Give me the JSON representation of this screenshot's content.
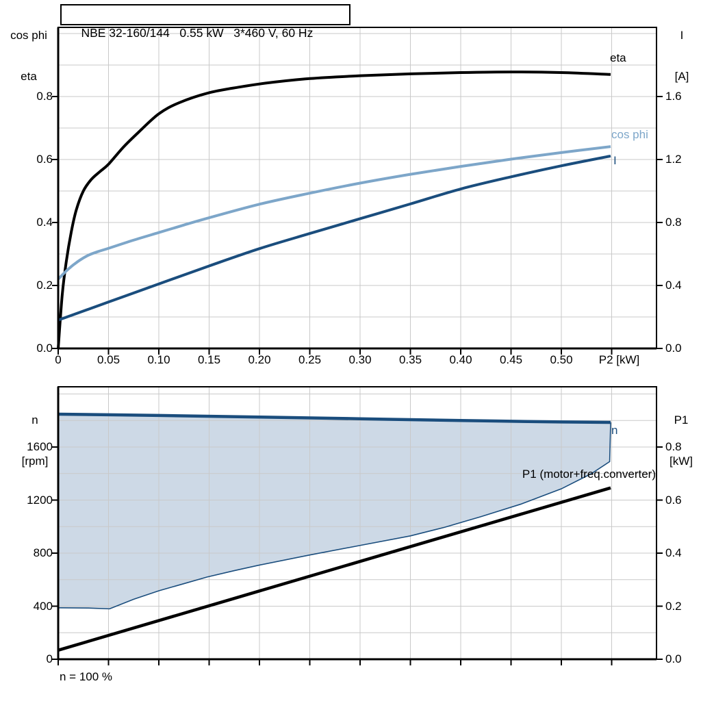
{
  "title": "NBE 32-160/144   0.55 kW   3*460 V, 60 Hz",
  "caption": "n = 100 %",
  "colors": {
    "black_curve": "#000000",
    "light_blue_curve": "#7da6c9",
    "dark_blue_curve": "#1a4d7d",
    "area_fill": "#cdd9e6",
    "gridline": "#c9c9c9",
    "frame": "#000000"
  },
  "chart_data": [
    {
      "type": "line",
      "name": "motor-performance",
      "x_axis": {
        "label": "P2 [kW]",
        "min": 0,
        "max": 0.594,
        "grid_step": 0.05,
        "grid_max": 0.55,
        "tick_values": [
          0,
          0.05,
          0.1,
          0.15,
          0.2,
          0.25,
          0.3,
          0.35,
          0.4,
          0.45,
          0.5,
          0.55
        ],
        "tick_labels": [
          "0",
          "0.05",
          "0.10",
          "0.15",
          "0.20",
          "0.25",
          "0.30",
          "0.35",
          "0.40",
          "0.45",
          "0.50",
          "P2 [kW]"
        ]
      },
      "y_left": {
        "label_lines": [
          "cos phi",
          "eta"
        ],
        "min": 0,
        "max": 1.02,
        "grid_step": 0.1,
        "grid_max": 1.0,
        "tick_values": [
          0,
          0.2,
          0.4,
          0.6,
          0.8
        ],
        "tick_labels": [
          "0.0",
          "0.2",
          "0.4",
          "0.6",
          "0.8"
        ]
      },
      "y_right": {
        "label_lines": [
          "I",
          "[A]"
        ],
        "min": 0,
        "max": 2.04,
        "tick_values": [
          0,
          0.4,
          0.8,
          1.2,
          1.6
        ],
        "tick_labels": [
          "0.0",
          "0.4",
          "0.8",
          "1.2",
          "1.6"
        ]
      },
      "series": [
        {
          "name": "eta",
          "label": "eta",
          "axis": "left",
          "color": "#000000",
          "width": 4,
          "points": [
            [
              0,
              0
            ],
            [
              0.004,
              0.17
            ],
            [
              0.008,
              0.275
            ],
            [
              0.013,
              0.37
            ],
            [
              0.018,
              0.44
            ],
            [
              0.025,
              0.5
            ],
            [
              0.033,
              0.537
            ],
            [
              0.042,
              0.563
            ],
            [
              0.05,
              0.585
            ],
            [
              0.065,
              0.64
            ],
            [
              0.08,
              0.687
            ],
            [
              0.1,
              0.745
            ],
            [
              0.12,
              0.78
            ],
            [
              0.15,
              0.812
            ],
            [
              0.18,
              0.83
            ],
            [
              0.21,
              0.844
            ],
            [
              0.25,
              0.857
            ],
            [
              0.3,
              0.866
            ],
            [
              0.35,
              0.872
            ],
            [
              0.4,
              0.876
            ],
            [
              0.45,
              0.878
            ],
            [
              0.5,
              0.876
            ],
            [
              0.549,
              0.87
            ]
          ]
        },
        {
          "name": "cos_phi",
          "label": "cos phi",
          "axis": "left",
          "color": "#7da6c9",
          "width": 4,
          "points": [
            [
              0,
              0.22
            ],
            [
              0.01,
              0.252
            ],
            [
              0.02,
              0.277
            ],
            [
              0.03,
              0.296
            ],
            [
              0.04,
              0.308
            ],
            [
              0.05,
              0.318
            ],
            [
              0.075,
              0.344
            ],
            [
              0.1,
              0.368
            ],
            [
              0.125,
              0.392
            ],
            [
              0.15,
              0.415
            ],
            [
              0.2,
              0.458
            ],
            [
              0.25,
              0.493
            ],
            [
              0.3,
              0.525
            ],
            [
              0.35,
              0.553
            ],
            [
              0.4,
              0.578
            ],
            [
              0.45,
              0.601
            ],
            [
              0.5,
              0.622
            ],
            [
              0.549,
              0.641
            ]
          ]
        },
        {
          "name": "I",
          "label": "I",
          "axis": "right",
          "color": "#1a4d7d",
          "width": 4,
          "points": [
            [
              0,
              0.18
            ],
            [
              0.05,
              0.295
            ],
            [
              0.1,
              0.41
            ],
            [
              0.15,
              0.524
            ],
            [
              0.2,
              0.634
            ],
            [
              0.25,
              0.73
            ],
            [
              0.3,
              0.824
            ],
            [
              0.35,
              0.918
            ],
            [
              0.4,
              1.013
            ],
            [
              0.45,
              1.09
            ],
            [
              0.5,
              1.16
            ],
            [
              0.549,
              1.222
            ]
          ]
        }
      ]
    },
    {
      "type": "line+area",
      "name": "speed-and-input-power",
      "x_axis": {
        "label": "",
        "min": 0,
        "max": 0.594,
        "grid_step": 0.05,
        "grid_max": 0.55,
        "tick_values": [
          0,
          0.05,
          0.1,
          0.15,
          0.2,
          0.25,
          0.3,
          0.35,
          0.4,
          0.45,
          0.5,
          0.55
        ],
        "tick_labels": []
      },
      "y_left": {
        "label_lines": [
          "n",
          "[rpm]"
        ],
        "min": 0,
        "max": 2055,
        "grid_step": 200,
        "grid_max": 2000,
        "tick_values": [
          0,
          400,
          800,
          1200,
          1600
        ],
        "tick_labels": [
          "0",
          "400",
          "800",
          "1200",
          "1600"
        ]
      },
      "y_right": {
        "label_lines": [
          "P1",
          "[kW]"
        ],
        "min": 0,
        "max": 1.03,
        "tick_values": [
          0,
          0.2,
          0.4,
          0.6,
          0.8
        ],
        "tick_labels": [
          "0.0",
          "0.2",
          "0.4",
          "0.6",
          "0.8"
        ]
      },
      "series": [
        {
          "name": "n",
          "label": "n",
          "axis": "left",
          "color": "#1a4d7d",
          "width": 4.5,
          "points": [
            [
              0,
              1848
            ],
            [
              0.1,
              1838
            ],
            [
              0.2,
              1826
            ],
            [
              0.3,
              1813
            ],
            [
              0.4,
              1800
            ],
            [
              0.5,
              1789
            ],
            [
              0.549,
              1786
            ]
          ]
        },
        {
          "name": "P1",
          "label": "P1 (motor+freq.converter)",
          "axis": "right",
          "color": "#000000",
          "width": 4.5,
          "points": [
            [
              0,
              0.034
            ],
            [
              0.275,
              0.341
            ],
            [
              0.549,
              0.646
            ]
          ]
        }
      ],
      "area": {
        "name": "speed-operating-range",
        "fill": "#cdd9e6",
        "edge_color": "#1a4d7d",
        "upper_series": "n",
        "lower_points_rpm": [
          [
            0,
            388
          ],
          [
            0.03,
            386
          ],
          [
            0.051,
            380
          ],
          [
            0.075,
            452
          ],
          [
            0.1,
            516
          ],
          [
            0.125,
            570
          ],
          [
            0.148,
            620
          ],
          [
            0.175,
            668
          ],
          [
            0.2,
            710
          ],
          [
            0.25,
            786
          ],
          [
            0.3,
            858
          ],
          [
            0.35,
            930
          ],
          [
            0.384,
            995
          ],
          [
            0.42,
            1075
          ],
          [
            0.46,
            1170
          ],
          [
            0.5,
            1285
          ],
          [
            0.53,
            1400
          ],
          [
            0.548,
            1490
          ]
        ]
      }
    }
  ],
  "curve_labels": {
    "eta": "eta",
    "cos_phi": "cos phi",
    "I": "I",
    "n": "n",
    "P1": "P1 (motor+freq.converter)"
  }
}
